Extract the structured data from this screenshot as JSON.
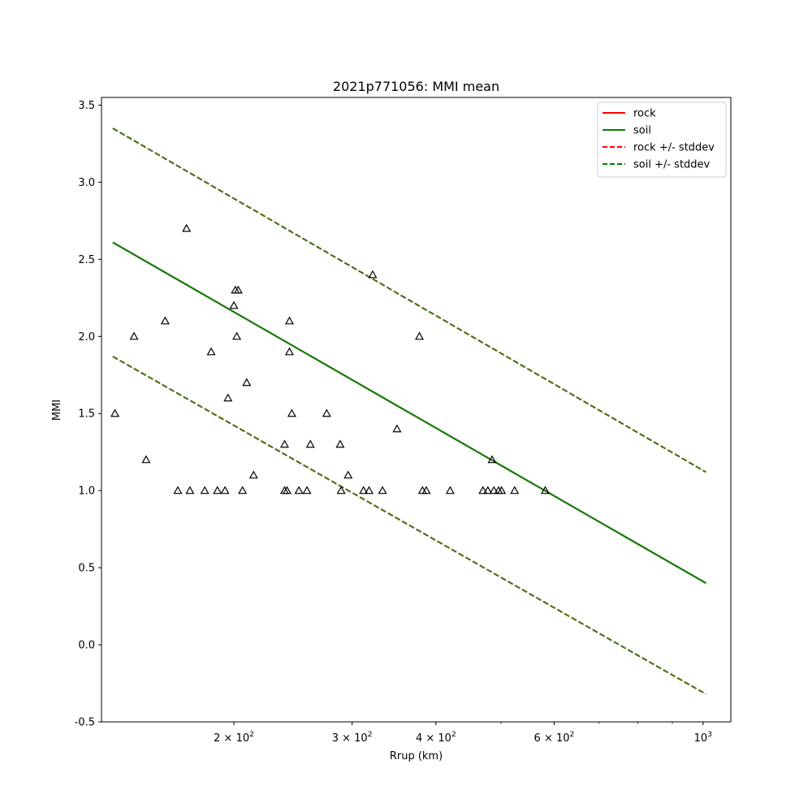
{
  "chart_data": {
    "type": "scatter",
    "title": "2021p771056: MMI mean",
    "xlabel": "Rrup (km)",
    "ylabel": "MMI",
    "xscale": "log",
    "xlim": [
      127,
      1100
    ],
    "ylim": [
      -0.5,
      3.55
    ],
    "xticks": [
      {
        "value": 200,
        "base": "2",
        "exp": "2"
      },
      {
        "value": 300,
        "base": "3",
        "exp": "2"
      },
      {
        "value": 400,
        "base": "4",
        "exp": "2"
      },
      {
        "value": 600,
        "base": "6",
        "exp": "2"
      },
      {
        "value": 1000,
        "base": "10",
        "exp": "3"
      }
    ],
    "yticks": [
      "-0.5",
      "0.0",
      "0.5",
      "1.0",
      "1.5",
      "2.0",
      "2.5",
      "3.0",
      "3.5"
    ],
    "legend": {
      "placement": "upper right",
      "entries": [
        {
          "label": "rock",
          "color": "#ff0000",
          "style": "solid"
        },
        {
          "label": "soil",
          "color": "#008000",
          "style": "solid"
        },
        {
          "label": "rock +/- stddev",
          "color": "#ff0000",
          "style": "dashed"
        },
        {
          "label": "soil +/- stddev",
          "color": "#008000",
          "style": "dashed"
        }
      ]
    },
    "series": [
      {
        "name": "rock",
        "color": "#ff0000",
        "style": "solid",
        "x": [
          132,
          1010
        ],
        "y": [
          2.61,
          0.4
        ]
      },
      {
        "name": "soil",
        "color": "#008000",
        "style": "solid",
        "x": [
          132,
          1010
        ],
        "y": [
          2.61,
          0.4
        ]
      },
      {
        "name": "rock +/- stddev",
        "color": "#ff0000",
        "style": "dashed",
        "x": [
          132,
          1010
        ],
        "y": [
          3.35,
          1.12
        ]
      },
      {
        "name": "rock +/- stddev",
        "color": "#ff0000",
        "style": "dashed",
        "x": [
          132,
          1010
        ],
        "y": [
          1.87,
          -0.32
        ]
      },
      {
        "name": "soil +/- stddev",
        "color": "#008000",
        "style": "dashed",
        "x": [
          132,
          1010
        ],
        "y": [
          3.35,
          1.12
        ]
      },
      {
        "name": "soil +/- stddev",
        "color": "#008000",
        "style": "dashed",
        "x": [
          132,
          1010
        ],
        "y": [
          1.87,
          -0.32
        ]
      }
    ],
    "observations": {
      "marker": "triangle",
      "color": "#000000",
      "points": [
        [
          133,
          1.5
        ],
        [
          142,
          2.0
        ],
        [
          148,
          1.2
        ],
        [
          158,
          2.1
        ],
        [
          165,
          1.0
        ],
        [
          170,
          2.7
        ],
        [
          172,
          1.0
        ],
        [
          181,
          1.0
        ],
        [
          185,
          1.9
        ],
        [
          189,
          1.0
        ],
        [
          194,
          1.0
        ],
        [
          196,
          1.6
        ],
        [
          200,
          2.2
        ],
        [
          201,
          2.3
        ],
        [
          202,
          2.0
        ],
        [
          203,
          2.3
        ],
        [
          206,
          1.0
        ],
        [
          209,
          1.7
        ],
        [
          214,
          1.1
        ],
        [
          238,
          1.3
        ],
        [
          238,
          1.0
        ],
        [
          240,
          1.0
        ],
        [
          242,
          2.1
        ],
        [
          242,
          1.9
        ],
        [
          244,
          1.5
        ],
        [
          250,
          1.0
        ],
        [
          257,
          1.0
        ],
        [
          260,
          1.3
        ],
        [
          275,
          1.5
        ],
        [
          288,
          1.3
        ],
        [
          289,
          1.0
        ],
        [
          296,
          1.1
        ],
        [
          312,
          1.0
        ],
        [
          318,
          1.0
        ],
        [
          322,
          2.4
        ],
        [
          333,
          1.0
        ],
        [
          350,
          1.4
        ],
        [
          378,
          2.0
        ],
        [
          382,
          1.0
        ],
        [
          387,
          1.0
        ],
        [
          420,
          1.0
        ],
        [
          470,
          1.0
        ],
        [
          478,
          1.0
        ],
        [
          485,
          1.2
        ],
        [
          488,
          1.0
        ],
        [
          496,
          1.0
        ],
        [
          501,
          1.0
        ],
        [
          524,
          1.0
        ],
        [
          582,
          1.0
        ]
      ]
    }
  }
}
